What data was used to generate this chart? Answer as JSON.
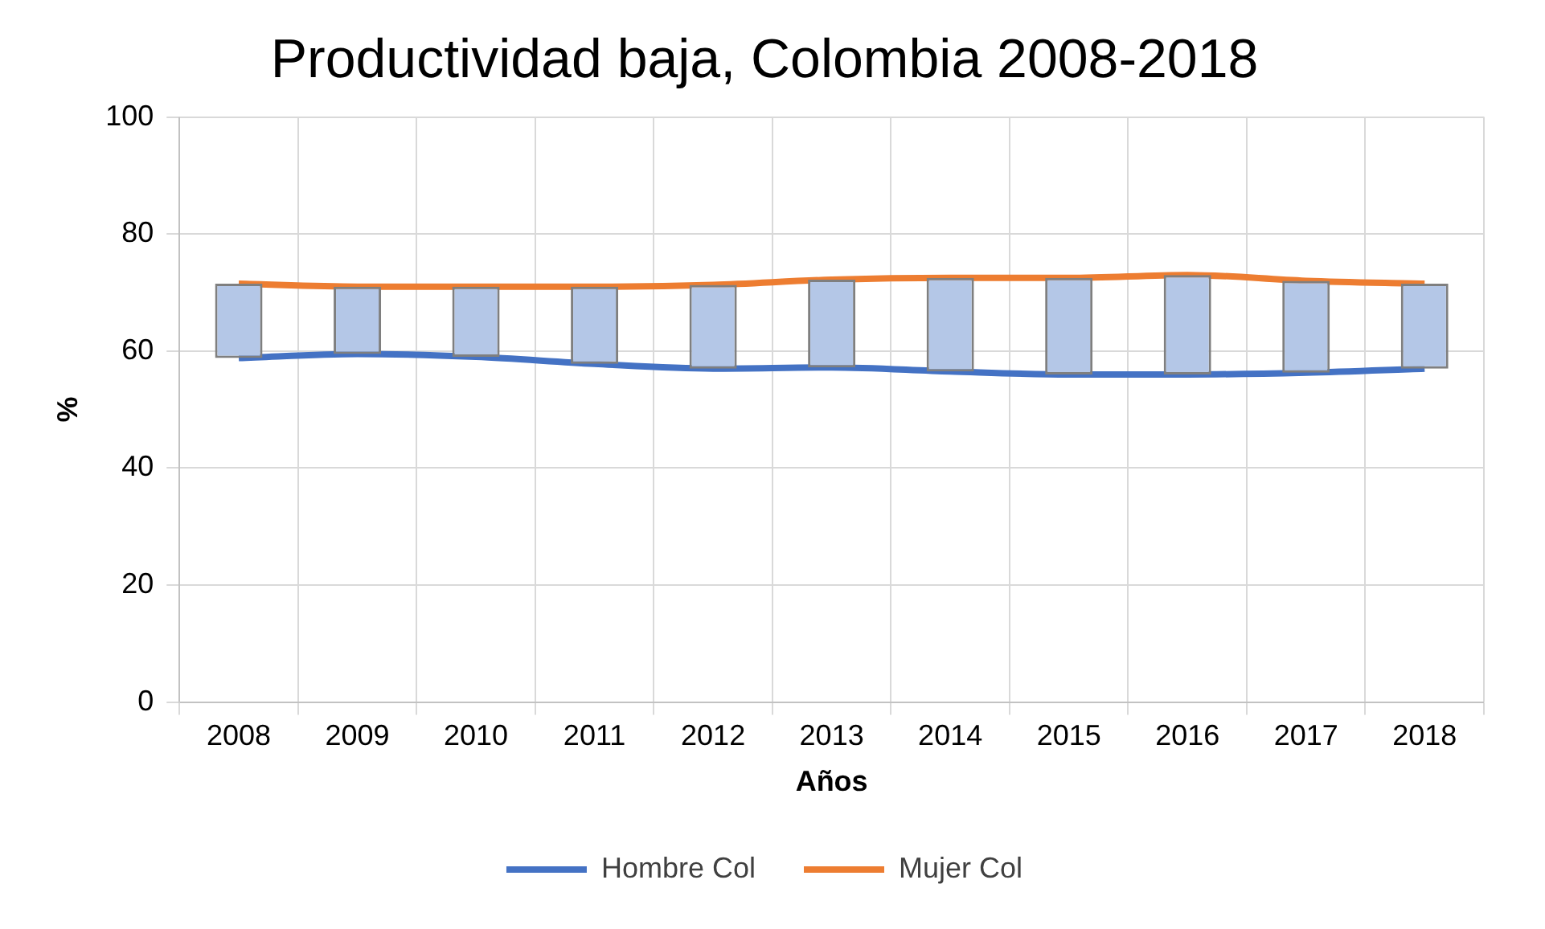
{
  "chart_data": {
    "type": "line",
    "title": "Productividad baja, Colombia 2008-2018",
    "xlabel": "Años",
    "ylabel": "%",
    "categories": [
      "2008",
      "2009",
      "2010",
      "2011",
      "2012",
      "2013",
      "2014",
      "2015",
      "2016",
      "2017",
      "2018"
    ],
    "series": [
      {
        "name": "Hombre Col",
        "color": "#4472c4",
        "values": [
          58.8,
          59.5,
          59,
          57.8,
          57,
          57.2,
          56.5,
          56,
          56,
          56.3,
          57
        ]
      },
      {
        "name": "Mujer Col",
        "color": "#ed7d31",
        "values": [
          71.5,
          71,
          71,
          71,
          71.3,
          72.2,
          72.5,
          72.5,
          73,
          72,
          71.5
        ]
      },
      {
        "type": "bar",
        "color": "#b4c7e7",
        "base": [
          58.8,
          59.5,
          59,
          57.8,
          57,
          57.2,
          56.5,
          56,
          56,
          56.3,
          57
        ],
        "values": [
          12.7,
          11.5,
          12,
          13.2,
          14.3,
          15,
          16,
          16.5,
          17,
          15.7,
          14.5
        ]
      }
    ],
    "ylim": [
      0,
      100
    ],
    "yticks": [
      0,
      20,
      40,
      60,
      80,
      100
    ],
    "grid": true,
    "legend": "bottom",
    "marker": "none"
  }
}
